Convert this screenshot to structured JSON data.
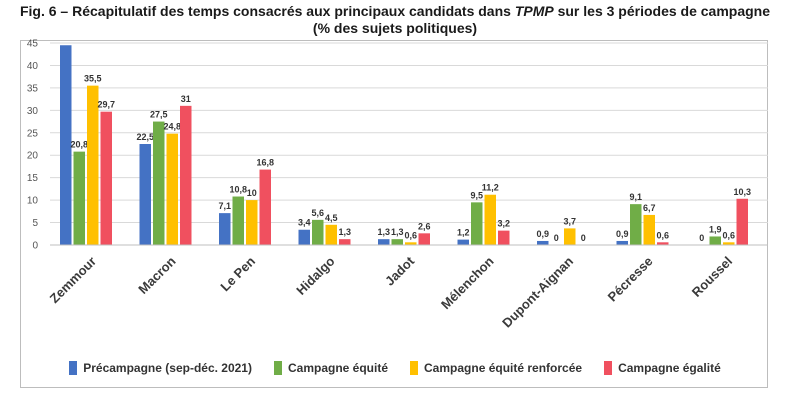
{
  "title": {
    "prefix": "Fig. 6 – Récapitulatif des temps consacrés aux principaux candidats dans ",
    "italic": "TPMP",
    "suffix": " sur les 3 périodes de campagne",
    "line2": "(% des sujets politiques)"
  },
  "chart_data": {
    "type": "bar",
    "title": "Fig. 6 – Récapitulatif des temps consacrés aux principaux candidats dans TPMP sur les 3 périodes de campagne (% des sujets politiques)",
    "xlabel": "",
    "ylabel": "",
    "ylim": [
      0,
      45
    ],
    "yticks": [
      "0",
      "5",
      "10",
      "15",
      "20",
      "25",
      "30",
      "35",
      "40",
      "45"
    ],
    "grid": true,
    "legend_position": "bottom",
    "categories": [
      "Zemmour",
      "Macron",
      "Le Pen",
      "Hidalgo",
      "Jadot",
      "Mélenchon",
      "Dupont-Aignan",
      "Pécresse",
      "Roussel"
    ],
    "series": [
      {
        "name": "Précampagne (sep-déc. 2021)",
        "color": "#4472c4",
        "values": [
          44.5,
          22.5,
          7.1,
          3.4,
          1.3,
          1.2,
          0.9,
          0.9,
          0
        ],
        "labels": [
          "",
          "22,5",
          "7,1",
          "3,4",
          "1,3",
          "1,2",
          "0,9",
          "0,9",
          "0"
        ]
      },
      {
        "name": "Campagne équité",
        "color": "#70ad47",
        "values": [
          20.8,
          27.5,
          10.8,
          5.6,
          1.3,
          9.5,
          0,
          9.1,
          1.9
        ],
        "labels": [
          "20,8",
          "27,5",
          "10,8",
          "5,6",
          "1,3",
          "9,5",
          "0",
          "9,1",
          "1,9"
        ]
      },
      {
        "name": "Campagne équité renforcée",
        "color": "#ffc000",
        "values": [
          35.5,
          24.8,
          10,
          4.5,
          0.6,
          11.2,
          3.7,
          6.7,
          0.6
        ],
        "labels": [
          "35,5",
          "24,8",
          "10",
          "4,5",
          "0,6",
          "11,2",
          "3,7",
          "6,7",
          "0,6"
        ]
      },
      {
        "name": "Campagne égalité",
        "color": "#f0505f",
        "values": [
          29.7,
          31,
          16.8,
          1.3,
          2.6,
          3.2,
          0,
          0.6,
          10.3
        ],
        "labels": [
          "29,7",
          "31",
          "16,8",
          "1,3",
          "2,6",
          "3,2",
          "0",
          "0,6",
          "10,3"
        ]
      }
    ]
  }
}
